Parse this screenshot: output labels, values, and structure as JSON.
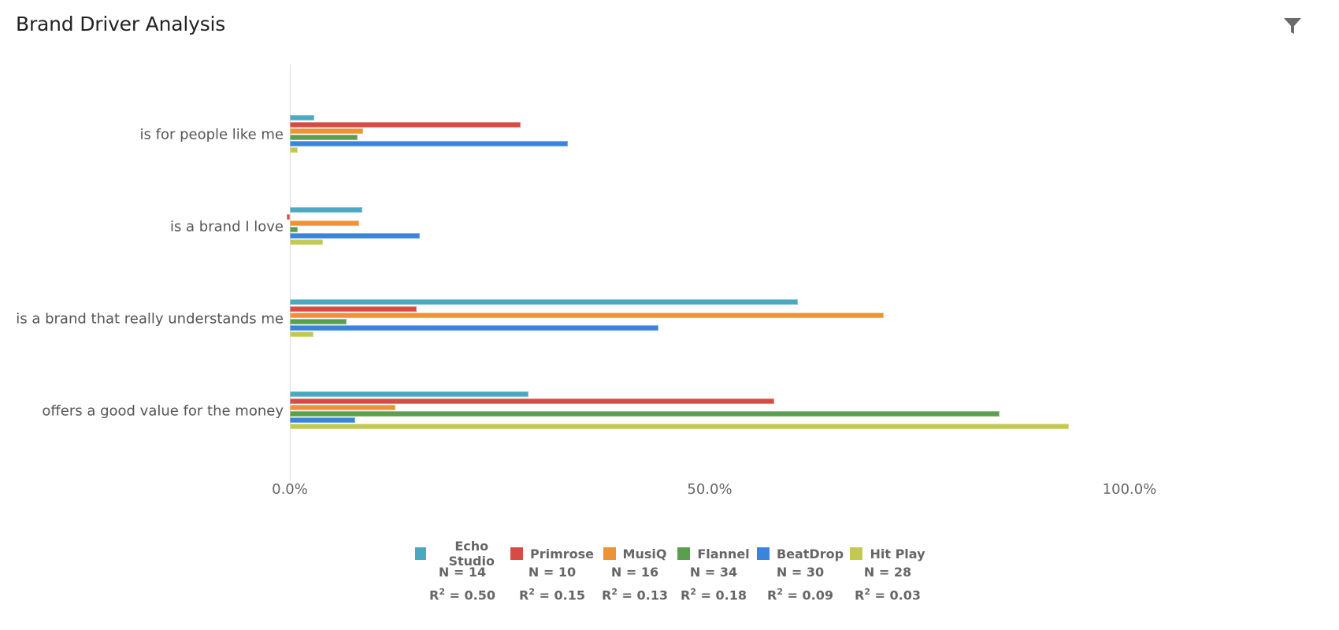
{
  "header": {
    "title": "Brand Driver Analysis",
    "filter_icon": "filter-funnel-icon"
  },
  "chart_data": {
    "type": "bar",
    "orientation": "horizontal",
    "title": "Brand Driver Analysis",
    "xlabel": "",
    "ylabel": "",
    "xlim": [
      0,
      100
    ],
    "x_ticks": [
      "0.0%",
      "50.0%",
      "100.0%"
    ],
    "grid": false,
    "legend_position": "bottom",
    "categories": [
      "is for people like me",
      "is a brand I love",
      "is a brand that really understands me",
      "offers a good value for the money"
    ],
    "series": [
      {
        "name": "Echo Studio",
        "color": "#4aa8c0",
        "n": "N = 14",
        "r2": "0.50",
        "values": [
          2.9,
          8.6,
          60.5,
          28.4
        ]
      },
      {
        "name": "Primrose",
        "color": "#d84b42",
        "n": "N = 10",
        "r2": "0.15",
        "values": [
          27.5,
          -0.3,
          15.1,
          57.7
        ]
      },
      {
        "name": "MusiQ",
        "color": "#ed9236",
        "n": "N = 16",
        "r2": "0.13",
        "values": [
          8.7,
          8.3,
          70.7,
          12.6
        ]
      },
      {
        "name": "Flannel",
        "color": "#5a9e50",
        "n": "N = 34",
        "r2": "0.18",
        "values": [
          8.1,
          0.9,
          6.8,
          84.5
        ]
      },
      {
        "name": "BeatDrop",
        "color": "#3b84db",
        "n": "N = 30",
        "r2": "0.09",
        "values": [
          33.1,
          15.5,
          43.9,
          7.8
        ]
      },
      {
        "name": "Hit Play",
        "color": "#c2c951",
        "n": "N = 28",
        "r2": "0.03",
        "values": [
          0.9,
          3.9,
          2.8,
          92.8
        ]
      }
    ]
  },
  "legend_r2_prefix": "R",
  "legend_r2_sup": "2",
  "legend_r2_eq": " = "
}
